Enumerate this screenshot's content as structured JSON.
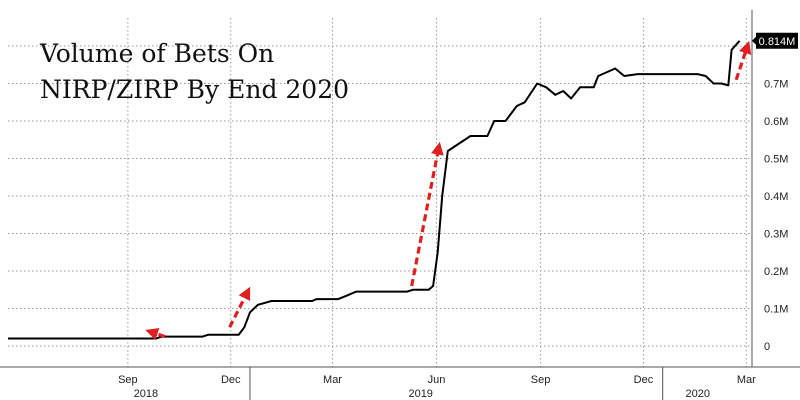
{
  "chart_data": {
    "type": "line",
    "title_lines": [
      "Volume of Bets On",
      "NIRP/ZIRP By End 2020"
    ],
    "xlabel": "",
    "ylabel": "",
    "x_start": "2018-06-01",
    "x_end": "2020-03-20",
    "ylim": [
      0,
      0.83
    ],
    "y_ticks": [
      {
        "value": 0,
        "label": "0"
      },
      {
        "value": 0.1,
        "label": "0.1M"
      },
      {
        "value": 0.2,
        "label": "0.2M"
      },
      {
        "value": 0.3,
        "label": "0.3M"
      },
      {
        "value": 0.4,
        "label": "0.4M"
      },
      {
        "value": 0.5,
        "label": "0.5M"
      },
      {
        "value": 0.6,
        "label": "0.6M"
      },
      {
        "value": 0.7,
        "label": "0.7M"
      }
    ],
    "x_month_ticks": [
      {
        "date": "2018-09-15",
        "label": "Sep"
      },
      {
        "date": "2018-12-15",
        "label": "Dec"
      },
      {
        "date": "2019-03-15",
        "label": "Mar"
      },
      {
        "date": "2019-06-15",
        "label": "Jun"
      },
      {
        "date": "2019-09-15",
        "label": "Sep"
      },
      {
        "date": "2019-12-15",
        "label": "Dec"
      },
      {
        "date": "2020-03-15",
        "label": "Mar"
      }
    ],
    "year_labels": [
      {
        "date": "2018-10-01",
        "label": "2018"
      },
      {
        "date": "2019-06-01",
        "label": "2019"
      },
      {
        "date": "2020-02-01",
        "label": "2020"
      }
    ],
    "year_dividers": [
      "2019-01-01",
      "2020-01-01"
    ],
    "last_value_label": "0.814M",
    "last_value": 0.814,
    "line_color": "#000000",
    "arrow_color": "#e02020",
    "grid": true,
    "series": [
      {
        "points": [
          [
            "2018-06-01",
            0.02
          ],
          [
            "2018-09-20",
            0.02
          ],
          [
            "2018-10-10",
            0.02
          ],
          [
            "2018-10-15",
            0.025
          ],
          [
            "2018-11-20",
            0.025
          ],
          [
            "2018-11-25",
            0.03
          ],
          [
            "2018-12-22",
            0.03
          ],
          [
            "2018-12-27",
            0.05
          ],
          [
            "2019-01-01",
            0.09
          ],
          [
            "2019-01-08",
            0.11
          ],
          [
            "2019-01-20",
            0.12
          ],
          [
            "2019-02-25",
            0.12
          ],
          [
            "2019-03-01",
            0.125
          ],
          [
            "2019-03-20",
            0.125
          ],
          [
            "2019-03-28",
            0.135
          ],
          [
            "2019-04-05",
            0.145
          ],
          [
            "2019-05-20",
            0.145
          ],
          [
            "2019-05-25",
            0.15
          ],
          [
            "2019-06-08",
            0.15
          ],
          [
            "2019-06-12",
            0.16
          ],
          [
            "2019-06-16",
            0.25
          ],
          [
            "2019-06-20",
            0.4
          ],
          [
            "2019-06-25",
            0.52
          ],
          [
            "2019-07-05",
            0.54
          ],
          [
            "2019-07-15",
            0.56
          ],
          [
            "2019-07-30",
            0.56
          ],
          [
            "2019-08-05",
            0.6
          ],
          [
            "2019-08-15",
            0.6
          ],
          [
            "2019-08-25",
            0.64
          ],
          [
            "2019-09-01",
            0.65
          ],
          [
            "2019-09-12",
            0.7
          ],
          [
            "2019-09-20",
            0.69
          ],
          [
            "2019-09-28",
            0.67
          ],
          [
            "2019-10-05",
            0.68
          ],
          [
            "2019-10-12",
            0.66
          ],
          [
            "2019-10-20",
            0.69
          ],
          [
            "2019-11-01",
            0.69
          ],
          [
            "2019-11-05",
            0.72
          ],
          [
            "2019-11-20",
            0.74
          ],
          [
            "2019-11-28",
            0.72
          ],
          [
            "2019-12-10",
            0.725
          ],
          [
            "2020-01-20",
            0.725
          ],
          [
            "2020-02-01",
            0.725
          ],
          [
            "2020-02-08",
            0.72
          ],
          [
            "2020-02-15",
            0.7
          ],
          [
            "2020-02-22",
            0.7
          ],
          [
            "2020-02-28",
            0.695
          ],
          [
            "2020-03-02",
            0.79
          ],
          [
            "2020-03-09",
            0.814
          ]
        ]
      }
    ],
    "annotations": [
      {
        "type": "arrow",
        "from_date": "2018-10-18",
        "from_value": 0.025,
        "to_date": "2018-10-05",
        "to_value": 0.038
      },
      {
        "type": "arrow",
        "from_date": "2018-12-14",
        "from_value": 0.05,
        "to_date": "2018-12-30",
        "to_value": 0.145
      },
      {
        "type": "arrow",
        "from_date": "2019-05-24",
        "from_value": 0.16,
        "to_date": "2019-06-17",
        "to_value": 0.53
      },
      {
        "type": "arrow",
        "from_date": "2020-03-06",
        "from_value": 0.71,
        "to_date": "2020-03-16",
        "to_value": 0.8
      }
    ]
  }
}
